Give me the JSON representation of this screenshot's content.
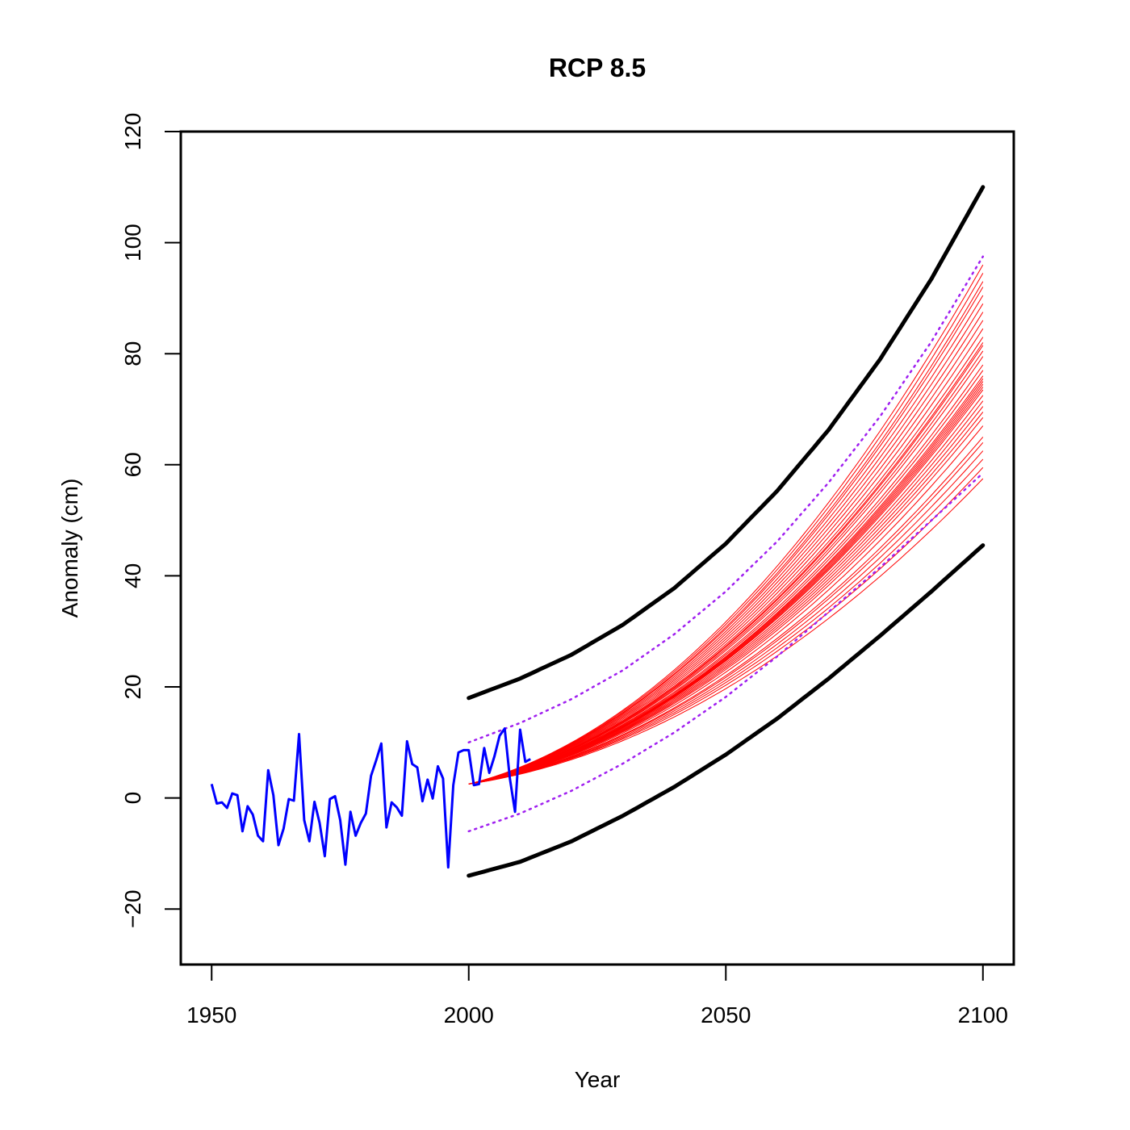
{
  "chart_data": {
    "type": "line",
    "title": "RCP 8.5",
    "xlabel": "Year",
    "ylabel": "Anomaly (cm)",
    "xlim": [
      1944,
      2106
    ],
    "ylim": [
      -30,
      120
    ],
    "xticks": [
      1950,
      2000,
      2050,
      2100
    ],
    "yticks": [
      -20,
      0,
      20,
      40,
      60,
      80,
      100,
      120
    ],
    "x_tick_labels": [
      "1950",
      "2000",
      "2050",
      "2100"
    ],
    "y_tick_labels": [
      "−20",
      "0",
      "20",
      "40",
      "60",
      "80",
      "100",
      "120"
    ],
    "grid": false,
    "legend": "none",
    "colors": {
      "observed": "#0000ff",
      "projection": "#ff0000",
      "inner_bound": "#a020f0",
      "outer_bound": "#000000"
    },
    "observed": {
      "x": [
        1950,
        1951,
        1952,
        1953,
        1954,
        1955,
        1956,
        1957,
        1958,
        1959,
        1960,
        1961,
        1962,
        1963,
        1964,
        1965,
        1966,
        1967,
        1968,
        1969,
        1970,
        1971,
        1972,
        1973,
        1974,
        1975,
        1976,
        1977,
        1978,
        1979,
        1980,
        1981,
        1982,
        1983,
        1984,
        1985,
        1986,
        1987,
        1988,
        1989,
        1990,
        1991,
        1992,
        1993,
        1994,
        1995,
        1996,
        1997,
        1998,
        1999,
        2000,
        2001,
        2002,
        2003,
        2004,
        2005,
        2006,
        2007,
        2008,
        2009,
        2010,
        2011,
        2012
      ],
      "y": [
        2.5,
        -1,
        -0.8,
        -1.8,
        0.8,
        0.5,
        -6,
        -1.5,
        -3,
        -6.8,
        -7.8,
        5,
        0.5,
        -8.5,
        -5.5,
        -0.2,
        -0.5,
        11.5,
        -4,
        -7.8,
        -0.7,
        -4.5,
        -10.5,
        -0.2,
        0.3,
        -4,
        -12,
        -2.5,
        -6.8,
        -4.5,
        -2.8,
        4,
        6.8,
        9.8,
        -5.3,
        -0.8,
        -1.7,
        -3.2,
        10.2,
        6.1,
        5.5,
        -0.6,
        3.3,
        -0.1,
        5.7,
        3.5,
        -12.5,
        2.3,
        8.2,
        8.6,
        8.6,
        2.3,
        2.5,
        9,
        4.5,
        7.5,
        11.2,
        12.5,
        3.5,
        -2.5,
        12.3,
        6.5,
        7
      ]
    },
    "bounds": {
      "x": [
        2000,
        2010,
        2020,
        2030,
        2040,
        2050,
        2060,
        2070,
        2080,
        2090,
        2100
      ],
      "outer_upper": [
        18,
        21.5,
        25.8,
        31.2,
        37.8,
        45.8,
        55.3,
        66.3,
        79,
        93.5,
        110
      ],
      "outer_lower": [
        -14,
        -11.5,
        -7.8,
        -3.2,
        2,
        7.8,
        14.3,
        21.5,
        29.2,
        37.2,
        45.5
      ],
      "inner_upper": [
        10,
        13.5,
        17.8,
        23,
        29.5,
        37.2,
        46.2,
        56.8,
        68.7,
        82.2,
        97.5
      ],
      "inner_lower": [
        -6,
        -2.8,
        1.3,
        6.2,
        11.8,
        18.2,
        25.5,
        33.5,
        41.5,
        50,
        58.5
      ]
    },
    "projections": {
      "start_year": 2000,
      "end_year": 2100,
      "start_value": 2.5,
      "end_values": [
        57.5,
        59.5,
        61,
        62.5,
        64,
        65,
        67,
        68.5,
        69.5,
        70.5,
        71.5,
        72.5,
        73.5,
        74,
        74.5,
        75,
        75.5,
        76,
        77,
        78,
        79.5,
        80.5,
        81.5,
        82,
        83,
        84.5,
        86,
        87.5,
        89,
        90.5,
        92,
        93,
        94.5,
        96
      ]
    }
  }
}
